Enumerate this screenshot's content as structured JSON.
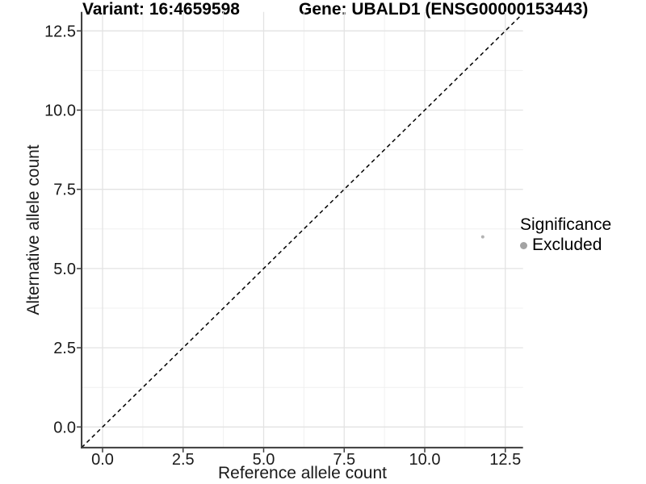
{
  "figure": {
    "title_left": "Variant: 16:4659598",
    "title_right": "Gene: UBALD1 (ENSG00000153443)"
  },
  "chart_data": {
    "type": "scatter",
    "title": "Variant: 16:4659598 — Gene: UBALD1 (ENSG00000153443)",
    "xlabel": "Reference allele count",
    "ylabel": "Alternative allele count",
    "x_tick_labels": [
      "0.0",
      "2.5",
      "5.0",
      "7.5",
      "10.0",
      "12.5"
    ],
    "x_tick_values": [
      0,
      2.5,
      5,
      7.5,
      10,
      12.5
    ],
    "y_tick_labels": [
      "0.0",
      "2.5",
      "5.0",
      "7.5",
      "10.0",
      "12.5"
    ],
    "y_tick_values": [
      0,
      2.5,
      5,
      7.5,
      10,
      12.5
    ],
    "minor_tick_values": [
      1.25,
      3.75,
      6.25,
      8.75,
      11.25
    ],
    "xlim": [
      -0.65,
      13.05
    ],
    "ylim": [
      -0.65,
      13.1
    ],
    "grid": "major+minor",
    "legend_position": "right",
    "reference_line": {
      "kind": "identity y=x",
      "style": "dashed",
      "color": "#000000"
    },
    "series": [
      {
        "name": "Excluded",
        "color": "#b3b3b3",
        "point_radius_px": 2,
        "points": [
          [
            11.8,
            6.0
          ]
        ]
      }
    ],
    "legend": {
      "title": "Significance",
      "items": [
        {
          "label": "Excluded",
          "marker_color": "#a3a3a3"
        }
      ]
    }
  },
  "colors": {
    "background": "#ffffff",
    "grid_major": "#e3e3e3",
    "grid_minor": "#f0f0f0",
    "axis_line": "#3c3c3c",
    "tick_mark": "#3c3c3c",
    "tick_label": "#1a1a1a",
    "title": "#000000"
  }
}
